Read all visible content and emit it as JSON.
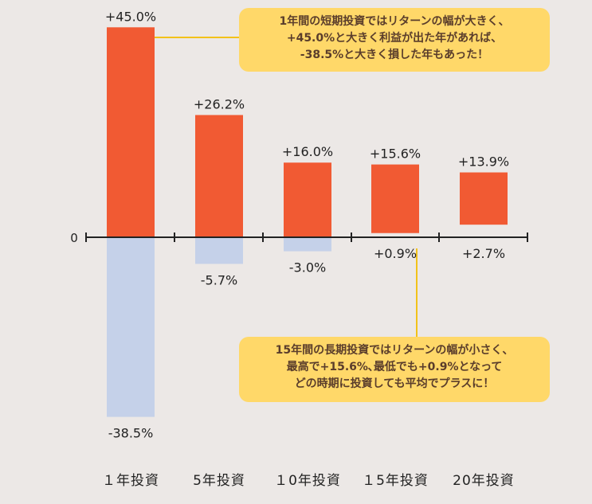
{
  "chart_data": {
    "type": "bar",
    "categories": [
      "１年投資",
      "5年投資",
      "１0年投資",
      "１5年投資",
      "20年投資"
    ],
    "series": [
      {
        "values": [
          45.0,
          26.2,
          16.0,
          15.6,
          13.9
        ]
      },
      {
        "values": [
          -38.5,
          -5.7,
          -3.0,
          0.9,
          2.7
        ]
      }
    ],
    "max_labels": [
      "+45.0%",
      "+26.2%",
      "+16.0%",
      "+15.6%",
      "+13.9%"
    ],
    "min_labels": [
      "-38.5%",
      "-5.7%",
      "-3.0%",
      "+0.9%",
      "+2.7%"
    ],
    "zero_label": "0",
    "colors": {
      "positive": "#f15a33",
      "negative": "#c5d1e9",
      "callout": "#ffd869",
      "callout_text": "#5a3d2b",
      "leader": "#f2c21a"
    }
  },
  "callouts": {
    "top": {
      "line1": "1年間の短期投資ではリターンの幅が大きく、",
      "line2": "+45.0%と大きく利益が出た年があれば、",
      "line3": "-38.5%と大きく損した年もあった！"
    },
    "bottom": {
      "line1": "15年間の長期投資ではリターンの幅が小さく、",
      "line2": "最高で+15.6%､最低でも+0.9%となって",
      "line3": "どの時期に投資しても平均でプラスに！"
    }
  }
}
